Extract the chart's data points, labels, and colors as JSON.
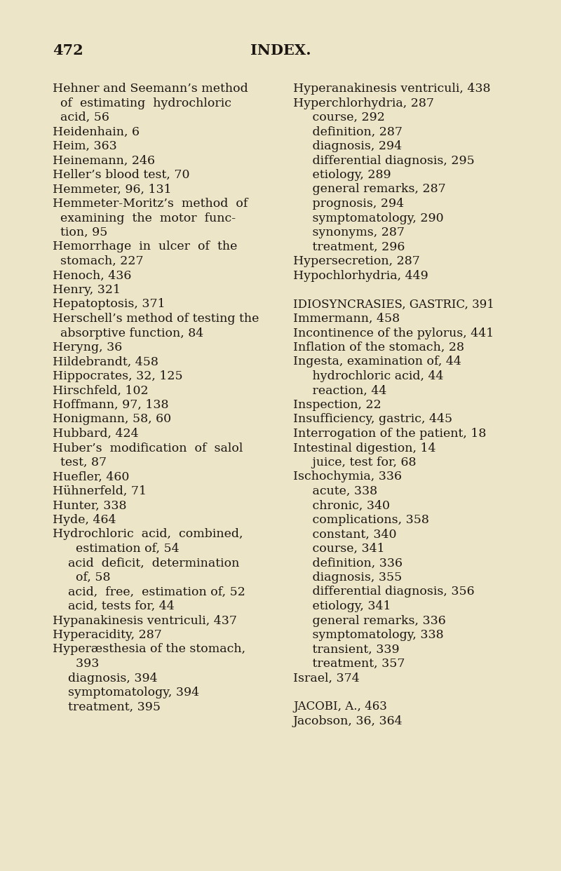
{
  "bg_color": "#ede5c8",
  "page_number": "472",
  "page_title": "INDEX.",
  "left_lines": [
    {
      "text": "Hehner and Seemann’s method",
      "indent": 0
    },
    {
      "text": "  of  estimating  hydrochloric",
      "indent": 1
    },
    {
      "text": "  acid, 56",
      "indent": 1
    },
    {
      "text": "Heidenhain, 6",
      "indent": 0
    },
    {
      "text": "Heim, 363",
      "indent": 0
    },
    {
      "text": "Heinemann, 246",
      "indent": 0
    },
    {
      "text": "Heller’s blood test, 70",
      "indent": 0
    },
    {
      "text": "Hemmeter, 96, 131",
      "indent": 0
    },
    {
      "text": "Hemmeter-Moritz’s  method  of",
      "indent": 0
    },
    {
      "text": "  examining  the  motor  func-",
      "indent": 1
    },
    {
      "text": "  tion, 95",
      "indent": 1
    },
    {
      "text": "Hemorrhage  in  ulcer  of  the",
      "indent": 0
    },
    {
      "text": "  stomach, 227",
      "indent": 1
    },
    {
      "text": "Henoch, 436",
      "indent": 0
    },
    {
      "text": "Henry, 321",
      "indent": 0
    },
    {
      "text": "Hepatoptosis, 371",
      "indent": 0
    },
    {
      "text": "Herschell’s method of testing the",
      "indent": 0
    },
    {
      "text": "  absorptive function, 84",
      "indent": 1
    },
    {
      "text": "Heryng, 36",
      "indent": 0
    },
    {
      "text": "Hildebrandt, 458",
      "indent": 0
    },
    {
      "text": "Hippocrates, 32, 125",
      "indent": 0
    },
    {
      "text": "Hirschfeld, 102",
      "indent": 0
    },
    {
      "text": "Hoffmann, 97, 138",
      "indent": 0
    },
    {
      "text": "Honigmann, 58, 60",
      "indent": 0
    },
    {
      "text": "Hubbard, 424",
      "indent": 0
    },
    {
      "text": "Huber’s  modification  of  salol",
      "indent": 0
    },
    {
      "text": "  test, 87",
      "indent": 1
    },
    {
      "text": "Huefler, 460",
      "indent": 0
    },
    {
      "text": "Hühnerfeld, 71",
      "indent": 0
    },
    {
      "text": "Hunter, 338",
      "indent": 0
    },
    {
      "text": "Hyde, 464",
      "indent": 0
    },
    {
      "text": "Hydrochloric  acid,  combined,",
      "indent": 0
    },
    {
      "text": "      estimation of, 54",
      "indent": 2
    },
    {
      "text": "    acid  deficit,  determination",
      "indent": 2
    },
    {
      "text": "      of, 58",
      "indent": 2
    },
    {
      "text": "    acid,  free,  estimation of, 52",
      "indent": 2
    },
    {
      "text": "    acid, tests for, 44",
      "indent": 2
    },
    {
      "text": "Hypanakinesis ventriculi, 437",
      "indent": 0
    },
    {
      "text": "Hyperacidity, 287",
      "indent": 0
    },
    {
      "text": "Hyperæsthesia of the stomach,",
      "indent": 0
    },
    {
      "text": "      393",
      "indent": 2
    },
    {
      "text": "    diagnosis, 394",
      "indent": 2
    },
    {
      "text": "    symptomatology, 394",
      "indent": 2
    },
    {
      "text": "    treatment, 395",
      "indent": 2
    }
  ],
  "right_lines": [
    {
      "text": "Hyperanakinesis ventriculi, 438",
      "indent": 0,
      "smallcaps": false
    },
    {
      "text": "Hyperchlorhydria, 287",
      "indent": 0,
      "smallcaps": false
    },
    {
      "text": "     course, 292",
      "indent": 1,
      "smallcaps": false
    },
    {
      "text": "     definition, 287",
      "indent": 1,
      "smallcaps": false
    },
    {
      "text": "     diagnosis, 294",
      "indent": 1,
      "smallcaps": false
    },
    {
      "text": "     differential diagnosis, 295",
      "indent": 1,
      "smallcaps": false
    },
    {
      "text": "     etiology, 289",
      "indent": 1,
      "smallcaps": false
    },
    {
      "text": "     general remarks, 287",
      "indent": 1,
      "smallcaps": false
    },
    {
      "text": "     prognosis, 294",
      "indent": 1,
      "smallcaps": false
    },
    {
      "text": "     symptomatology, 290",
      "indent": 1,
      "smallcaps": false
    },
    {
      "text": "     synonyms, 287",
      "indent": 1,
      "smallcaps": false
    },
    {
      "text": "     treatment, 296",
      "indent": 1,
      "smallcaps": false
    },
    {
      "text": "Hypersecretion, 287",
      "indent": 0,
      "smallcaps": false
    },
    {
      "text": "Hypochlorhydria, 449",
      "indent": 0,
      "smallcaps": false
    },
    {
      "text": "",
      "indent": 0,
      "smallcaps": false
    },
    {
      "text": "Idiosyncrasies, gastric, 391",
      "indent": 0,
      "smallcaps": true
    },
    {
      "text": "Immermann, 458",
      "indent": 0,
      "smallcaps": false
    },
    {
      "text": "Incontinence of the pylorus, 441",
      "indent": 0,
      "smallcaps": false
    },
    {
      "text": "Inflation of the stomach, 28",
      "indent": 0,
      "smallcaps": false
    },
    {
      "text": "Ingesta, examination of, 44",
      "indent": 0,
      "smallcaps": false
    },
    {
      "text": "     hydrochloric acid, 44",
      "indent": 1,
      "smallcaps": false
    },
    {
      "text": "     reaction, 44",
      "indent": 1,
      "smallcaps": false
    },
    {
      "text": "Inspection, 22",
      "indent": 0,
      "smallcaps": false
    },
    {
      "text": "Insufficiency, gastric, 445",
      "indent": 0,
      "smallcaps": false
    },
    {
      "text": "Interrogation of the patient, 18",
      "indent": 0,
      "smallcaps": false
    },
    {
      "text": "Intestinal digestion, 14",
      "indent": 0,
      "smallcaps": false
    },
    {
      "text": "     juice, test for, 68",
      "indent": 1,
      "smallcaps": false
    },
    {
      "text": "Ischochymia, 336",
      "indent": 0,
      "smallcaps": false
    },
    {
      "text": "     acute, 338",
      "indent": 1,
      "smallcaps": false
    },
    {
      "text": "     chronic, 340",
      "indent": 1,
      "smallcaps": false
    },
    {
      "text": "     complications, 358",
      "indent": 1,
      "smallcaps": false
    },
    {
      "text": "     constant, 340",
      "indent": 1,
      "smallcaps": false
    },
    {
      "text": "     course, 341",
      "indent": 1,
      "smallcaps": false
    },
    {
      "text": "     definition, 336",
      "indent": 1,
      "smallcaps": false
    },
    {
      "text": "     diagnosis, 355",
      "indent": 1,
      "smallcaps": false
    },
    {
      "text": "     differential diagnosis, 356",
      "indent": 1,
      "smallcaps": false
    },
    {
      "text": "     etiology, 341",
      "indent": 1,
      "smallcaps": false
    },
    {
      "text": "     general remarks, 336",
      "indent": 1,
      "smallcaps": false
    },
    {
      "text": "     symptomatology, 338",
      "indent": 1,
      "smallcaps": false
    },
    {
      "text": "     transient, 339",
      "indent": 1,
      "smallcaps": false
    },
    {
      "text": "     treatment, 357",
      "indent": 1,
      "smallcaps": false
    },
    {
      "text": "Israel, 374",
      "indent": 0,
      "smallcaps": false
    },
    {
      "text": "",
      "indent": 0,
      "smallcaps": false
    },
    {
      "text": "Jacobi, A., 463",
      "indent": 0,
      "smallcaps": true
    },
    {
      "text": "Jacobson, 36, 364",
      "indent": 0,
      "smallcaps": false
    }
  ]
}
